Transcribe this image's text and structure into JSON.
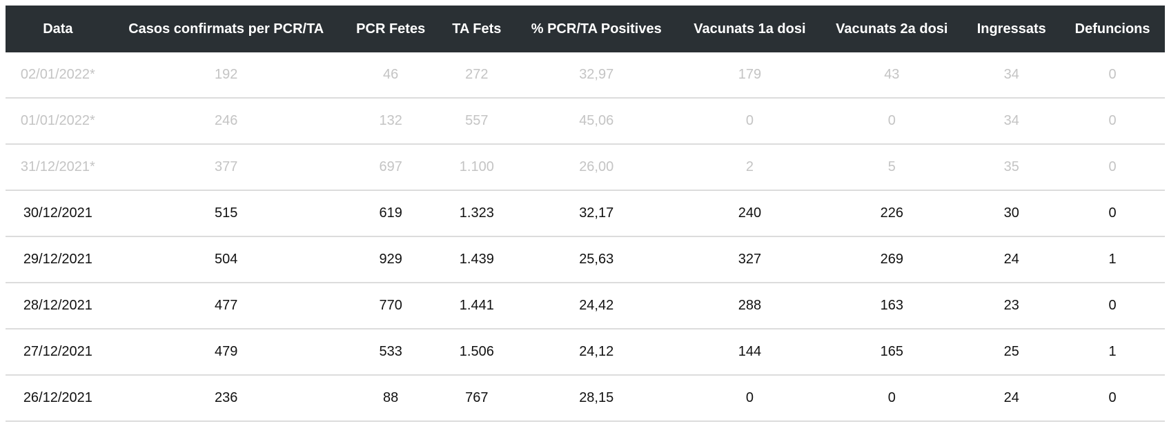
{
  "table": {
    "columns": [
      "Data",
      "Casos confirmats per PCR/TA",
      "PCR Fetes",
      "TA Fets",
      "% PCR/TA Positives",
      "Vacunats 1a dosi",
      "Vacunats 2a dosi",
      "Ingressats",
      "Defuncions"
    ],
    "rows": [
      {
        "provisional": true,
        "cells": [
          "02/01/2022*",
          "192",
          "46",
          "272",
          "32,97",
          "179",
          "43",
          "34",
          "0"
        ]
      },
      {
        "provisional": true,
        "cells": [
          "01/01/2022*",
          "246",
          "132",
          "557",
          "45,06",
          "0",
          "0",
          "34",
          "0"
        ]
      },
      {
        "provisional": true,
        "cells": [
          "31/12/2021*",
          "377",
          "697",
          "1.100",
          "26,00",
          "2",
          "5",
          "35",
          "0"
        ]
      },
      {
        "provisional": false,
        "cells": [
          "30/12/2021",
          "515",
          "619",
          "1.323",
          "32,17",
          "240",
          "226",
          "30",
          "0"
        ]
      },
      {
        "provisional": false,
        "cells": [
          "29/12/2021",
          "504",
          "929",
          "1.439",
          "25,63",
          "327",
          "269",
          "24",
          "1"
        ]
      },
      {
        "provisional": false,
        "cells": [
          "28/12/2021",
          "477",
          "770",
          "1.441",
          "24,42",
          "288",
          "163",
          "23",
          "0"
        ]
      },
      {
        "provisional": false,
        "cells": [
          "27/12/2021",
          "479",
          "533",
          "1.506",
          "24,12",
          "144",
          "165",
          "25",
          "1"
        ]
      },
      {
        "provisional": false,
        "cells": [
          "26/12/2021",
          "236",
          "88",
          "767",
          "28,15",
          "0",
          "0",
          "24",
          "0"
        ]
      }
    ],
    "colors": {
      "header_bg": "#2a3034",
      "header_text": "#ffffff",
      "row_text": "#111111",
      "provisional_text": "#c4c4c4",
      "row_border": "#dcdcdc"
    }
  }
}
